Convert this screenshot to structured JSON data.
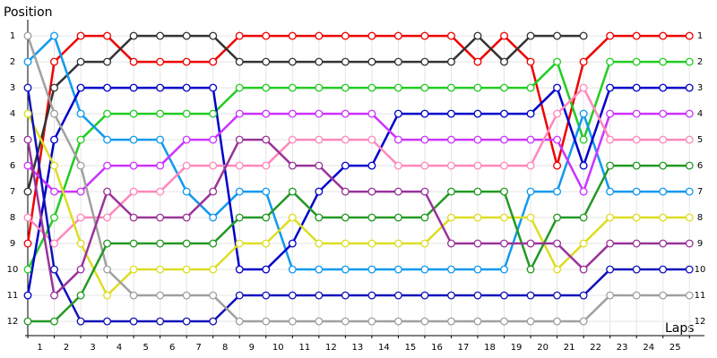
{
  "chart_data": {
    "type": "line",
    "y_label": "Position",
    "x_label": "Laps",
    "x": [
      0,
      1,
      2,
      3,
      4,
      5,
      6,
      7,
      8,
      9,
      10,
      11,
      12,
      13,
      14,
      15,
      16,
      17,
      18,
      19,
      20,
      21,
      22,
      23,
      24,
      25
    ],
    "xlim": [
      0,
      25.5
    ],
    "xticks": [
      1,
      2,
      3,
      4,
      5,
      6,
      7,
      8,
      9,
      10,
      11,
      12,
      13,
      14,
      15,
      16,
      17,
      18,
      19,
      20,
      21,
      22,
      23,
      24,
      25
    ],
    "ylim": [
      12.55,
      0.48
    ],
    "yticks": [
      1,
      2,
      3,
      4,
      5,
      6,
      7,
      8,
      9,
      10,
      11,
      12
    ],
    "grid": true,
    "series": [
      {
        "color": "#ee0000",
        "values": [
          9,
          2,
          1,
          1,
          2,
          2,
          2,
          2,
          1,
          1,
          1,
          1,
          1,
          1,
          1,
          1,
          1,
          2,
          1,
          2,
          6,
          2,
          1,
          1,
          1,
          1
        ]
      },
      {
        "color": "#333333",
        "values": [
          7,
          3,
          2,
          2,
          1,
          1,
          1,
          1,
          2,
          2,
          2,
          2,
          2,
          2,
          2,
          2,
          2,
          1,
          2,
          1,
          1,
          1,
          null,
          null,
          null,
          null
        ]
      },
      {
        "color": "#22cc22",
        "values": [
          10,
          8,
          5,
          4,
          4,
          4,
          4,
          4,
          3,
          3,
          3,
          3,
          3,
          3,
          3,
          3,
          3,
          3,
          3,
          3,
          2,
          5,
          2,
          2,
          2,
          2
        ]
      },
      {
        "color": "#1199ee",
        "values": [
          2,
          1,
          4,
          5,
          5,
          5,
          7,
          8,
          7,
          7,
          10,
          10,
          10,
          10,
          10,
          10,
          10,
          10,
          10,
          7,
          7,
          4,
          7,
          7,
          7,
          7
        ]
      },
      {
        "color": "#0000cc",
        "values": [
          11,
          5,
          3,
          3,
          3,
          3,
          3,
          3,
          10,
          10,
          9,
          7,
          6,
          6,
          4,
          4,
          4,
          4,
          4,
          4,
          3,
          6,
          3,
          3,
          3,
          3
        ]
      },
      {
        "color": "#cc33ff",
        "values": [
          6,
          7,
          7,
          6,
          6,
          6,
          5,
          5,
          4,
          4,
          4,
          4,
          4,
          4,
          5,
          5,
          5,
          5,
          5,
          5,
          5,
          7,
          4,
          4,
          4,
          4
        ]
      },
      {
        "color": "#ff88bb",
        "values": [
          8,
          9,
          8,
          8,
          7,
          7,
          6,
          6,
          6,
          6,
          5,
          5,
          5,
          5,
          6,
          6,
          6,
          6,
          6,
          6,
          4,
          3,
          5,
          5,
          5,
          5
        ]
      },
      {
        "color": "#dddd22",
        "values": [
          4,
          6,
          9,
          11,
          10,
          10,
          10,
          10,
          9,
          9,
          8,
          9,
          9,
          9,
          9,
          9,
          8,
          8,
          8,
          8,
          10,
          9,
          8,
          8,
          8,
          8
        ]
      },
      {
        "color": "#1111bb",
        "values": [
          3,
          10,
          12,
          12,
          12,
          12,
          12,
          12,
          11,
          11,
          11,
          11,
          11,
          11,
          11,
          11,
          11,
          11,
          11,
          11,
          11,
          11,
          10,
          10,
          10,
          10
        ]
      },
      {
        "color": "#a0a0a0",
        "values": [
          1,
          4,
          6,
          10,
          11,
          11,
          11,
          11,
          12,
          12,
          12,
          12,
          12,
          12,
          12,
          12,
          12,
          12,
          12,
          12,
          12,
          12,
          11,
          11,
          11,
          11
        ]
      },
      {
        "color": "#229922",
        "values": [
          12,
          12,
          11,
          9,
          9,
          9,
          9,
          9,
          8,
          8,
          7,
          8,
          8,
          8,
          8,
          8,
          7,
          7,
          7,
          10,
          8,
          8,
          6,
          6,
          6,
          6
        ]
      },
      {
        "color": "#993399",
        "values": [
          5,
          11,
          10,
          7,
          8,
          8,
          8,
          7,
          5,
          5,
          6,
          6,
          7,
          7,
          7,
          7,
          9,
          9,
          9,
          9,
          9,
          10,
          9,
          9,
          9,
          9
        ]
      }
    ]
  }
}
